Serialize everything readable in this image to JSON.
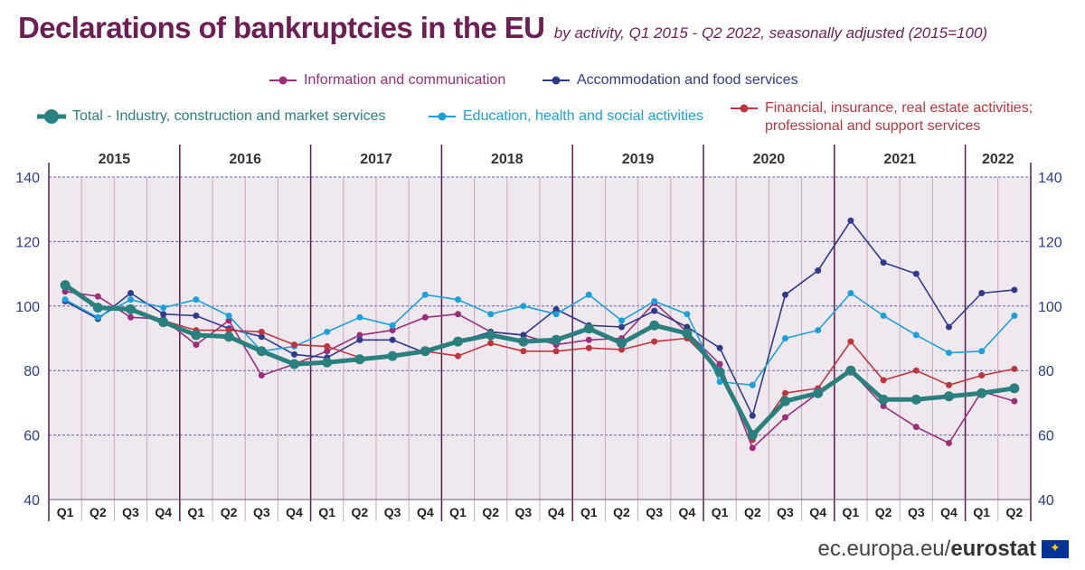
{
  "header": {
    "title": "Declarations of bankruptcies in the EU",
    "subtitle": "by activity, Q1 2015 - Q2 2022, seasonally adjusted (2015=100)"
  },
  "source": {
    "prefix": "ec.europa.eu/",
    "brand": "eurostat"
  },
  "colors": {
    "total": "#2a7f7f",
    "info": "#9b2d7a",
    "accommodation": "#2e3a8c",
    "education": "#1aa1dc",
    "financial": "#c0353d",
    "plot_bg": "#efe9ef",
    "year_line": "#5b1a4a",
    "quarter_line": "#c9a6bf",
    "axis_text": "#2e3a8c",
    "year_text": "#333333"
  },
  "chart_data": {
    "type": "line",
    "years": [
      "2015",
      "2016",
      "2017",
      "2018",
      "2019",
      "2020",
      "2021",
      "2022"
    ],
    "x": [
      "Q1",
      "Q2",
      "Q3",
      "Q4",
      "Q1",
      "Q2",
      "Q3",
      "Q4",
      "Q1",
      "Q2",
      "Q3",
      "Q4",
      "Q1",
      "Q2",
      "Q3",
      "Q4",
      "Q1",
      "Q2",
      "Q3",
      "Q4",
      "Q1",
      "Q2",
      "Q3",
      "Q4",
      "Q1",
      "Q2",
      "Q3",
      "Q4",
      "Q1",
      "Q2"
    ],
    "ylim": [
      40,
      140
    ],
    "yticks": [
      "40",
      "60",
      "80",
      "100",
      "120",
      "140"
    ],
    "grid": true,
    "series": [
      {
        "key": "info",
        "name": "Information and communication",
        "values": [
          104.5,
          103,
          96.5,
          96,
          88,
          95.5,
          78.5,
          82,
          86,
          91,
          92.5,
          96.5,
          97.5,
          92,
          91,
          88,
          89.5,
          90,
          101,
          92,
          82,
          56,
          65.5,
          73,
          80,
          69,
          62.5,
          57.5,
          73.5,
          70.5
        ]
      },
      {
        "key": "accommodation",
        "name": "Accommodation and food services",
        "values": [
          101.5,
          96,
          104,
          97.5,
          97,
          93,
          90.5,
          85,
          84,
          89.5,
          89.5,
          85.5,
          89,
          92,
          91,
          99,
          94,
          93.5,
          98.5,
          93.5,
          87,
          66,
          103.5,
          111,
          126.5,
          113.5,
          110,
          93.5,
          104,
          105
        ]
      },
      {
        "key": "education",
        "name": "Education, health and social activities",
        "values": [
          102,
          96.5,
          102,
          99.5,
          102,
          97,
          86,
          87.5,
          92,
          96.5,
          94,
          103.5,
          102,
          97.5,
          100,
          97.5,
          103.5,
          95.5,
          101.5,
          97.5,
          76.5,
          75.5,
          90,
          92.5,
          104,
          97,
          91,
          85.5,
          86,
          97
        ]
      },
      {
        "key": "financial",
        "name": "Financial, insurance, real estate activities; professional and support services",
        "values": [
          106.5,
          100,
          98.5,
          95.5,
          92.5,
          92.5,
          92,
          88,
          87.5,
          84,
          84,
          86,
          84.5,
          88.5,
          86,
          86,
          87,
          86.5,
          89,
          90,
          80,
          58.5,
          73,
          74.5,
          89,
          77,
          80,
          75.5,
          78.5,
          80.5
        ]
      },
      {
        "key": "total",
        "name": "Total - Industry, construction and market services",
        "values": [
          106.5,
          99.5,
          99,
          95,
          91,
          90.5,
          86,
          82,
          82.5,
          83.5,
          84.5,
          86,
          89,
          91,
          89,
          89.5,
          93,
          88.5,
          94,
          91.5,
          79.5,
          60,
          70.5,
          73,
          80,
          71,
          71,
          72,
          73,
          74.5
        ]
      }
    ]
  }
}
